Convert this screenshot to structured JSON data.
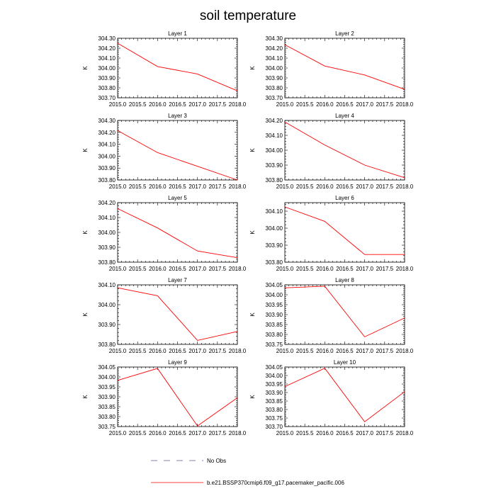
{
  "title": "soil temperature",
  "chart_data": [
    {
      "type": "line",
      "title": "Layer 1",
      "ylabel": "K",
      "x": [
        2015.0,
        2016.0,
        2017.0,
        2018.0
      ],
      "y": [
        304.25,
        304.015,
        303.94,
        303.77
      ],
      "ylim": [
        303.7,
        304.3
      ],
      "yticks": [
        "303.70",
        "303.80",
        "303.90",
        "304.00",
        "304.10",
        "304.20",
        "304.30"
      ],
      "xlim": [
        2015.0,
        2018.0
      ],
      "xticks": [
        "2015.0",
        "2015.5",
        "2016.0",
        "2016.5",
        "2017.0",
        "2017.5",
        "2018.0"
      ]
    },
    {
      "type": "line",
      "title": "Layer 2",
      "ylabel": "K",
      "x": [
        2015.0,
        2016.0,
        2017.0,
        2018.0
      ],
      "y": [
        304.235,
        304.02,
        303.93,
        303.785
      ],
      "ylim": [
        303.7,
        304.3
      ],
      "yticks": [
        "303.70",
        "303.80",
        "303.90",
        "304.00",
        "304.10",
        "304.20",
        "304.30"
      ],
      "xlim": [
        2015.0,
        2018.0
      ],
      "xticks": [
        "2015.0",
        "2015.5",
        "2016.0",
        "2016.5",
        "2017.0",
        "2017.5",
        "2018.0"
      ]
    },
    {
      "type": "line",
      "title": "Layer 3",
      "ylabel": "K",
      "x": [
        2015.0,
        2016.0,
        2017.0,
        2018.0
      ],
      "y": [
        304.215,
        304.03,
        303.915,
        303.8
      ],
      "ylim": [
        303.8,
        304.3
      ],
      "yticks": [
        "303.80",
        "303.90",
        "304.00",
        "304.10",
        "304.20",
        "304.30"
      ],
      "xlim": [
        2015.0,
        2018.0
      ],
      "xticks": [
        "2015.0",
        "2015.5",
        "2016.0",
        "2016.5",
        "2017.0",
        "2017.5",
        "2018.0"
      ]
    },
    {
      "type": "line",
      "title": "Layer 4",
      "ylabel": "K",
      "x": [
        2015.0,
        2016.0,
        2017.0,
        2018.0
      ],
      "y": [
        304.19,
        304.035,
        303.9,
        303.815
      ],
      "ylim": [
        303.8,
        304.2
      ],
      "yticks": [
        "303.80",
        "303.90",
        "304.00",
        "304.10",
        "304.20"
      ],
      "xlim": [
        2015.0,
        2018.0
      ],
      "xticks": [
        "2015.0",
        "2015.5",
        "2016.0",
        "2016.5",
        "2017.0",
        "2017.5",
        "2018.0"
      ]
    },
    {
      "type": "line",
      "title": "Layer 5",
      "ylabel": "K",
      "x": [
        2015.0,
        2016.0,
        2017.0,
        2018.0
      ],
      "y": [
        304.16,
        304.03,
        303.875,
        303.83
      ],
      "ylim": [
        303.8,
        304.2
      ],
      "yticks": [
        "303.80",
        "303.90",
        "304.00",
        "304.10",
        "304.20"
      ],
      "xlim": [
        2015.0,
        2018.0
      ],
      "xticks": [
        "2015.0",
        "2015.5",
        "2016.0",
        "2016.5",
        "2017.0",
        "2017.5",
        "2018.0"
      ]
    },
    {
      "type": "line",
      "title": "Layer 6",
      "ylabel": "K",
      "x": [
        2015.0,
        2016.0,
        2017.0,
        2018.0
      ],
      "y": [
        304.125,
        304.04,
        303.845,
        303.845
      ],
      "ylim": [
        303.8,
        304.15
      ],
      "yticks": [
        "303.80",
        "303.90",
        "304.00",
        "304.10"
      ],
      "xlim": [
        2015.0,
        2018.0
      ],
      "xticks": [
        "2015.0",
        "2015.5",
        "2016.0",
        "2016.5",
        "2017.0",
        "2017.5",
        "2018.0"
      ]
    },
    {
      "type": "line",
      "title": "Layer 7",
      "ylabel": "K",
      "x": [
        2015.0,
        2016.0,
        2017.0,
        2018.0
      ],
      "y": [
        304.085,
        304.045,
        303.82,
        303.865
      ],
      "ylim": [
        303.8,
        304.1
      ],
      "yticks": [
        "303.80",
        "303.90",
        "304.00",
        "304.10"
      ],
      "xlim": [
        2015.0,
        2018.0
      ],
      "xticks": [
        "2015.0",
        "2015.5",
        "2016.0",
        "2016.5",
        "2017.0",
        "2017.5",
        "2018.0"
      ]
    },
    {
      "type": "line",
      "title": "Layer 8",
      "ylabel": "K",
      "x": [
        2015.0,
        2016.0,
        2017.0,
        2018.0
      ],
      "y": [
        304.035,
        304.043,
        303.788,
        303.883
      ],
      "ylim": [
        303.75,
        304.05
      ],
      "yticks": [
        "303.75",
        "303.80",
        "303.85",
        "303.90",
        "303.95",
        "304.00",
        "304.05"
      ],
      "xlim": [
        2015.0,
        2018.0
      ],
      "xticks": [
        "2015.0",
        "2015.5",
        "2016.0",
        "2016.5",
        "2017.0",
        "2017.5",
        "2018.0"
      ]
    },
    {
      "type": "line",
      "title": "Layer 9",
      "ylabel": "K",
      "x": [
        2015.0,
        2016.0,
        2017.0,
        2018.0
      ],
      "y": [
        303.983,
        304.043,
        303.753,
        303.895
      ],
      "ylim": [
        303.75,
        304.05
      ],
      "yticks": [
        "303.75",
        "303.80",
        "303.85",
        "303.90",
        "303.95",
        "304.00",
        "304.05"
      ],
      "xlim": [
        2015.0,
        2018.0
      ],
      "xticks": [
        "2015.0",
        "2015.5",
        "2016.0",
        "2016.5",
        "2017.0",
        "2017.5",
        "2018.0"
      ]
    },
    {
      "type": "line",
      "title": "Layer 10",
      "ylabel": "K",
      "x": [
        2015.0,
        2016.0,
        2017.0,
        2018.0
      ],
      "y": [
        303.935,
        304.043,
        303.728,
        303.905
      ],
      "ylim": [
        303.7,
        304.05
      ],
      "yticks": [
        "303.70",
        "303.75",
        "303.80",
        "303.85",
        "303.90",
        "303.95",
        "304.00",
        "304.05"
      ],
      "xlim": [
        2015.0,
        2018.0
      ],
      "xticks": [
        "2015.0",
        "2015.5",
        "2016.0",
        "2016.5",
        "2017.0",
        "2017.5",
        "2018.0"
      ]
    }
  ],
  "legend": [
    {
      "label": "No Obs",
      "style": "dashed",
      "color": "#6b4c9a"
    },
    {
      "label": "b.e21.BSSP370cmip6.f09_g17.pacemaker_pacific.006",
      "style": "solid",
      "color": "#ff0000"
    }
  ],
  "colors": {
    "line": "#ff0000",
    "axis": "#000000"
  }
}
